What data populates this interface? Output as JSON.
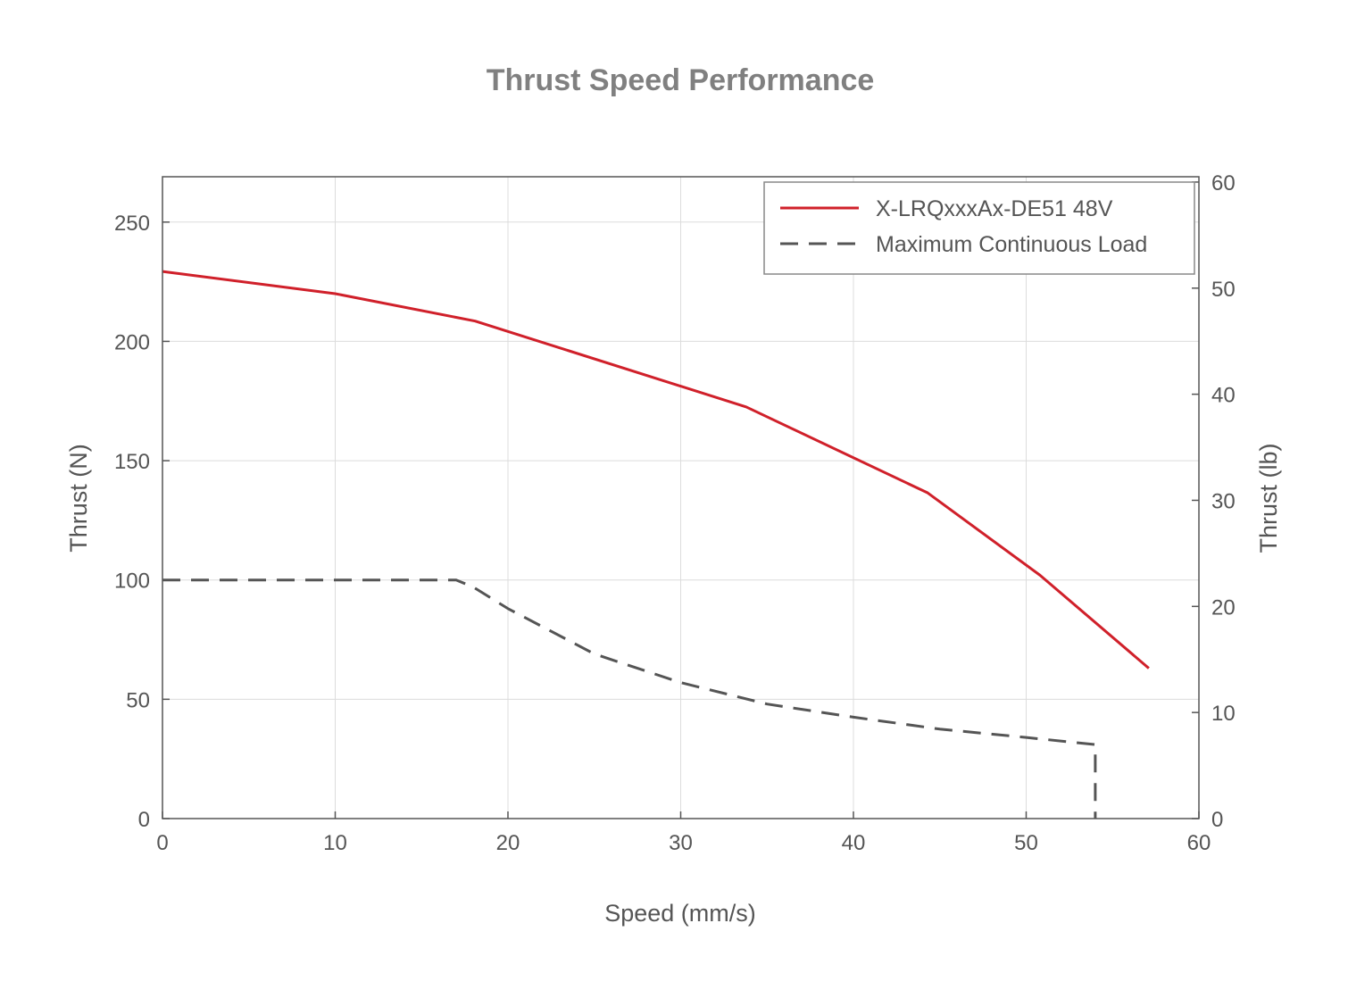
{
  "chart_data": {
    "type": "line",
    "title": "Thrust Speed Performance",
    "xlabel": "Speed (mm/s)",
    "ylabel": "Thrust (N)",
    "ylabel_right": "Thrust (lb)",
    "xlim": [
      0,
      60
    ],
    "ylim": [
      0,
      269
    ],
    "ylim_right": [
      0,
      60.5
    ],
    "xticks": [
      "0",
      "10",
      "20",
      "30",
      "40",
      "50",
      "60"
    ],
    "yticks": [
      "0",
      "50",
      "100",
      "150",
      "200",
      "250"
    ],
    "yticks_right": [
      "0",
      "10",
      "20",
      "30",
      "40",
      "50",
      "60"
    ],
    "grid": true,
    "legend_position": "top-right",
    "series": [
      {
        "name": "X-LRQxxxAx-DE51 48V",
        "color": "#d0202a",
        "style": "solid",
        "points": [
          [
            0,
            229.3
          ],
          [
            10,
            220
          ],
          [
            18.1,
            208.5
          ],
          [
            33.8,
            172.5
          ],
          [
            44.3,
            136.5
          ],
          [
            50.8,
            102
          ],
          [
            57.1,
            63
          ]
        ]
      },
      {
        "name": "Maximum Continuous Load",
        "color": "#555555",
        "style": "dashed",
        "points": [
          [
            0,
            100
          ],
          [
            17,
            100
          ],
          [
            18,
            97
          ],
          [
            20,
            88
          ],
          [
            25,
            69
          ],
          [
            30,
            57
          ],
          [
            35,
            48
          ],
          [
            40,
            42.5
          ],
          [
            45,
            37.5
          ],
          [
            50,
            34
          ],
          [
            54,
            31
          ],
          [
            54,
            0
          ]
        ]
      }
    ]
  }
}
